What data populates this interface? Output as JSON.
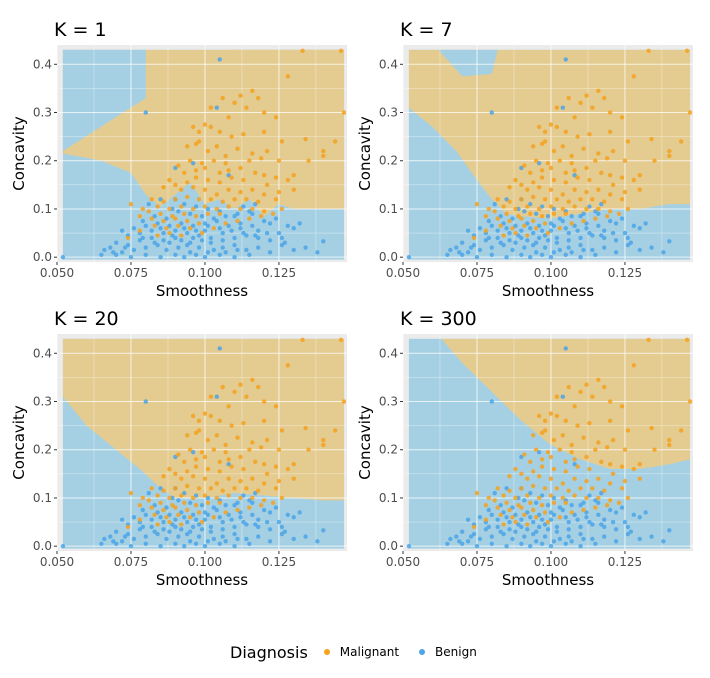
{
  "colors": {
    "malignant": "#F4A11E",
    "benign": "#4BA5E8",
    "region_malignant": "#E4CB90",
    "region_benign": "#A5D0E3",
    "panel_background": "#EBEBEB",
    "grid": "#FFFFFF"
  },
  "legend": {
    "title": "Diagnosis",
    "items": [
      {
        "label": "Malignant",
        "color_key": "malignant"
      },
      {
        "label": "Benign",
        "color_key": "benign"
      }
    ]
  },
  "chart_data": [
    {
      "type": "scatter",
      "title": "K =  1",
      "xlabel": "Smoothness",
      "ylabel": "Concavity",
      "xlim": [
        0.05,
        0.148
      ],
      "ylim": [
        -0.01,
        0.44
      ],
      "xticks": [
        0.05,
        0.075,
        0.1,
        0.125
      ],
      "xtick_labels": [
        "0.050",
        "0.075",
        "0.100",
        "0.125"
      ],
      "yticks": [
        0.0,
        0.1,
        0.2,
        0.3,
        0.4
      ],
      "ytick_labels": [
        "0.0",
        "0.1",
        "0.2",
        "0.3",
        "0.4"
      ],
      "grid": true,
      "background": "decision-region",
      "region_boundary": [
        [
          0.052,
          0.215
        ],
        [
          0.065,
          0.2
        ],
        [
          0.075,
          0.175
        ],
        [
          0.08,
          0.13
        ],
        [
          0.085,
          0.105
        ],
        [
          0.09,
          0.13
        ],
        [
          0.095,
          0.155
        ],
        [
          0.1,
          0.11
        ],
        [
          0.105,
          0.12
        ],
        [
          0.11,
          0.1
        ],
        [
          0.115,
          0.12
        ],
        [
          0.12,
          0.085
        ],
        [
          0.125,
          0.11
        ],
        [
          0.13,
          0.1
        ],
        [
          0.135,
          0.1
        ],
        [
          0.147,
          0.1
        ]
      ],
      "region_malignant_extra": [
        [
          0.08,
          0.33
        ],
        [
          0.095,
          0.36
        ],
        [
          0.1,
          0.41
        ],
        [
          0.11,
          0.41
        ],
        [
          0.11,
          0.43
        ],
        [
          0.147,
          0.43
        ],
        [
          0.147,
          0.2
        ],
        [
          0.12,
          0.2
        ],
        [
          0.1,
          0.25
        ],
        [
          0.09,
          0.28
        ],
        [
          0.082,
          0.3
        ]
      ]
    },
    {
      "type": "scatter",
      "title": "K =  7",
      "xlabel": "Smoothness",
      "ylabel": "Concavity",
      "xlim": [
        0.05,
        0.148
      ],
      "ylim": [
        -0.01,
        0.44
      ],
      "xticks": [
        0.05,
        0.075,
        0.1,
        0.125
      ],
      "xtick_labels": [
        "0.050",
        "0.075",
        "0.100",
        "0.125"
      ],
      "yticks": [
        0.0,
        0.1,
        0.2,
        0.3,
        0.4
      ],
      "ytick_labels": [
        "0.0",
        "0.1",
        "0.2",
        "0.3",
        "0.4"
      ],
      "grid": true,
      "background": "decision-region",
      "region_boundary": [
        [
          0.052,
          0.31
        ],
        [
          0.06,
          0.27
        ],
        [
          0.068,
          0.22
        ],
        [
          0.075,
          0.16
        ],
        [
          0.08,
          0.12
        ],
        [
          0.085,
          0.09
        ],
        [
          0.09,
          0.085
        ],
        [
          0.1,
          0.08
        ],
        [
          0.11,
          0.09
        ],
        [
          0.12,
          0.1
        ],
        [
          0.13,
          0.1
        ],
        [
          0.14,
          0.11
        ],
        [
          0.147,
          0.11
        ]
      ]
    },
    {
      "type": "scatter",
      "title": "K =  20",
      "xlabel": "Smoothness",
      "ylabel": "Concavity",
      "xlim": [
        0.05,
        0.148
      ],
      "ylim": [
        -0.01,
        0.44
      ],
      "xticks": [
        0.05,
        0.075,
        0.1,
        0.125
      ],
      "xtick_labels": [
        "0.050",
        "0.075",
        "0.100",
        "0.125"
      ],
      "yticks": [
        0.0,
        0.1,
        0.2,
        0.3,
        0.4
      ],
      "ytick_labels": [
        "0.0",
        "0.1",
        "0.2",
        "0.3",
        "0.4"
      ],
      "grid": true,
      "background": "decision-region",
      "region_boundary": [
        [
          0.052,
          0.31
        ],
        [
          0.06,
          0.25
        ],
        [
          0.07,
          0.2
        ],
        [
          0.078,
          0.16
        ],
        [
          0.085,
          0.12
        ],
        [
          0.09,
          0.1
        ],
        [
          0.1,
          0.1
        ],
        [
          0.11,
          0.11
        ],
        [
          0.12,
          0.105
        ],
        [
          0.13,
          0.1
        ],
        [
          0.14,
          0.095
        ],
        [
          0.147,
          0.095
        ]
      ]
    },
    {
      "type": "scatter",
      "title": "K =  300",
      "xlabel": "Smoothness",
      "ylabel": "Concavity",
      "xlim": [
        0.05,
        0.148
      ],
      "ylim": [
        -0.01,
        0.44
      ],
      "xticks": [
        0.05,
        0.075,
        0.1,
        0.125
      ],
      "xtick_labels": [
        "0.050",
        "0.075",
        "0.100",
        "0.125"
      ],
      "yticks": [
        0.0,
        0.1,
        0.2,
        0.3,
        0.4
      ],
      "ytick_labels": [
        "0.0",
        "0.1",
        "0.2",
        "0.3",
        "0.4"
      ],
      "grid": true,
      "background": "decision-region",
      "region_boundary": [
        [
          0.063,
          0.43
        ],
        [
          0.07,
          0.38
        ],
        [
          0.08,
          0.32
        ],
        [
          0.09,
          0.26
        ],
        [
          0.1,
          0.21
        ],
        [
          0.11,
          0.18
        ],
        [
          0.12,
          0.16
        ],
        [
          0.13,
          0.16
        ],
        [
          0.14,
          0.17
        ],
        [
          0.147,
          0.18
        ]
      ]
    }
  ],
  "points": {
    "malignant": [
      [
        0.133,
        0.428
      ],
      [
        0.146,
        0.428
      ],
      [
        0.128,
        0.375
      ],
      [
        0.116,
        0.345
      ],
      [
        0.112,
        0.335
      ],
      [
        0.118,
        0.33
      ],
      [
        0.11,
        0.32
      ],
      [
        0.114,
        0.31
      ],
      [
        0.124,
        0.29
      ],
      [
        0.12,
        0.3
      ],
      [
        0.108,
        0.29
      ],
      [
        0.1,
        0.275
      ],
      [
        0.102,
        0.27
      ],
      [
        0.098,
        0.26
      ],
      [
        0.105,
        0.26
      ],
      [
        0.109,
        0.25
      ],
      [
        0.113,
        0.255
      ],
      [
        0.12,
        0.26
      ],
      [
        0.126,
        0.24
      ],
      [
        0.134,
        0.245
      ],
      [
        0.144,
        0.24
      ],
      [
        0.14,
        0.21
      ],
      [
        0.094,
        0.23
      ],
      [
        0.097,
        0.235
      ],
      [
        0.101,
        0.22
      ],
      [
        0.104,
        0.23
      ],
      [
        0.107,
        0.21
      ],
      [
        0.111,
        0.225
      ],
      [
        0.116,
        0.215
      ],
      [
        0.121,
        0.22
      ],
      [
        0.125,
        0.2
      ],
      [
        0.115,
        0.2
      ],
      [
        0.107,
        0.195
      ],
      [
        0.103,
        0.2
      ],
      [
        0.099,
        0.195
      ],
      [
        0.095,
        0.2
      ],
      [
        0.091,
        0.19
      ],
      [
        0.093,
        0.175
      ],
      [
        0.097,
        0.18
      ],
      [
        0.1,
        0.185
      ],
      [
        0.105,
        0.175
      ],
      [
        0.108,
        0.18
      ],
      [
        0.112,
        0.185
      ],
      [
        0.117,
        0.175
      ],
      [
        0.12,
        0.17
      ],
      [
        0.124,
        0.165
      ],
      [
        0.128,
        0.16
      ],
      [
        0.113,
        0.16
      ],
      [
        0.109,
        0.165
      ],
      [
        0.105,
        0.155
      ],
      [
        0.101,
        0.16
      ],
      [
        0.097,
        0.165
      ],
      [
        0.094,
        0.155
      ],
      [
        0.09,
        0.15
      ],
      [
        0.086,
        0.145
      ],
      [
        0.088,
        0.16
      ],
      [
        0.092,
        0.14
      ],
      [
        0.096,
        0.145
      ],
      [
        0.1,
        0.14
      ],
      [
        0.104,
        0.13
      ],
      [
        0.108,
        0.14
      ],
      [
        0.112,
        0.135
      ],
      [
        0.116,
        0.14
      ],
      [
        0.12,
        0.13
      ],
      [
        0.124,
        0.12
      ],
      [
        0.118,
        0.115
      ],
      [
        0.114,
        0.12
      ],
      [
        0.11,
        0.12
      ],
      [
        0.106,
        0.115
      ],
      [
        0.102,
        0.12
      ],
      [
        0.098,
        0.12
      ],
      [
        0.094,
        0.125
      ],
      [
        0.09,
        0.12
      ],
      [
        0.086,
        0.115
      ],
      [
        0.082,
        0.12
      ],
      [
        0.084,
        0.105
      ],
      [
        0.088,
        0.1
      ],
      [
        0.092,
        0.105
      ],
      [
        0.096,
        0.1
      ],
      [
        0.1,
        0.105
      ],
      [
        0.104,
        0.1
      ],
      [
        0.108,
        0.105
      ],
      [
        0.112,
        0.1
      ],
      [
        0.116,
        0.1
      ],
      [
        0.12,
        0.095
      ],
      [
        0.126,
        0.1
      ],
      [
        0.081,
        0.095
      ],
      [
        0.085,
        0.09
      ],
      [
        0.089,
        0.085
      ],
      [
        0.093,
        0.09
      ],
      [
        0.097,
        0.085
      ],
      [
        0.101,
        0.09
      ],
      [
        0.105,
        0.09
      ],
      [
        0.078,
        0.085
      ],
      [
        0.082,
        0.08
      ],
      [
        0.086,
        0.075
      ],
      [
        0.09,
        0.08
      ],
      [
        0.094,
        0.075
      ],
      [
        0.098,
        0.07
      ],
      [
        0.075,
        0.11
      ],
      [
        0.079,
        0.1
      ],
      [
        0.083,
        0.065
      ],
      [
        0.087,
        0.06
      ],
      [
        0.091,
        0.065
      ],
      [
        0.095,
        0.06
      ],
      [
        0.088,
        0.05
      ],
      [
        0.084,
        0.045
      ],
      [
        0.092,
        0.045
      ],
      [
        0.099,
        0.05
      ],
      [
        0.078,
        0.055
      ],
      [
        0.074,
        0.04
      ],
      [
        0.103,
        0.06
      ],
      [
        0.107,
        0.07
      ],
      [
        0.111,
        0.075
      ],
      [
        0.115,
        0.08
      ],
      [
        0.119,
        0.085
      ],
      [
        0.123,
        0.09
      ],
      [
        0.13,
        0.17
      ],
      [
        0.135,
        0.2
      ],
      [
        0.14,
        0.22
      ],
      [
        0.147,
        0.3
      ],
      [
        0.102,
        0.31
      ],
      [
        0.106,
        0.33
      ],
      [
        0.098,
        0.24
      ],
      [
        0.096,
        0.27
      ],
      [
        0.119,
        0.205
      ],
      [
        0.121,
        0.15
      ],
      [
        0.125,
        0.135
      ],
      [
        0.13,
        0.14
      ]
    ],
    "benign": [
      [
        0.105,
        0.41
      ],
      [
        0.104,
        0.31
      ],
      [
        0.08,
        0.3
      ],
      [
        0.052,
        0.0
      ],
      [
        0.14,
        0.033
      ],
      [
        0.096,
        0.195
      ],
      [
        0.09,
        0.185
      ],
      [
        0.108,
        0.17
      ],
      [
        0.09,
        0.12
      ],
      [
        0.11,
        0.085
      ],
      [
        0.116,
        0.09
      ],
      [
        0.122,
        0.07
      ],
      [
        0.125,
        0.05
      ],
      [
        0.13,
        0.06
      ],
      [
        0.118,
        0.055
      ],
      [
        0.112,
        0.06
      ],
      [
        0.106,
        0.05
      ],
      [
        0.1,
        0.055
      ],
      [
        0.096,
        0.04
      ],
      [
        0.092,
        0.035
      ],
      [
        0.088,
        0.03
      ],
      [
        0.084,
        0.025
      ],
      [
        0.08,
        0.02
      ],
      [
        0.076,
        0.015
      ],
      [
        0.072,
        0.01
      ],
      [
        0.068,
        0.02
      ],
      [
        0.065,
        0.005
      ],
      [
        0.07,
        0.03
      ],
      [
        0.074,
        0.025
      ],
      [
        0.078,
        0.035
      ],
      [
        0.082,
        0.04
      ],
      [
        0.086,
        0.035
      ],
      [
        0.09,
        0.04
      ],
      [
        0.094,
        0.025
      ],
      [
        0.098,
        0.02
      ],
      [
        0.102,
        0.03
      ],
      [
        0.106,
        0.02
      ],
      [
        0.11,
        0.025
      ],
      [
        0.114,
        0.015
      ],
      [
        0.118,
        0.02
      ],
      [
        0.122,
        0.01
      ],
      [
        0.126,
        0.025
      ],
      [
        0.13,
        0.015
      ],
      [
        0.134,
        0.02
      ],
      [
        0.138,
        0.01
      ],
      [
        0.085,
        0.0
      ],
      [
        0.09,
        0.005
      ],
      [
        0.095,
        0.01
      ],
      [
        0.1,
        0.0
      ],
      [
        0.105,
        0.005
      ],
      [
        0.11,
        0.0
      ],
      [
        0.115,
        0.005
      ],
      [
        0.08,
        0.005
      ],
      [
        0.075,
        0.0
      ],
      [
        0.07,
        0.005
      ],
      [
        0.066,
        0.015
      ],
      [
        0.074,
        0.045
      ],
      [
        0.078,
        0.05
      ],
      [
        0.082,
        0.055
      ],
      [
        0.086,
        0.05
      ],
      [
        0.09,
        0.055
      ],
      [
        0.094,
        0.05
      ],
      [
        0.098,
        0.045
      ],
      [
        0.102,
        0.04
      ],
      [
        0.106,
        0.035
      ],
      [
        0.11,
        0.04
      ],
      [
        0.114,
        0.045
      ],
      [
        0.118,
        0.04
      ],
      [
        0.122,
        0.035
      ],
      [
        0.126,
        0.04
      ],
      [
        0.08,
        0.065
      ],
      [
        0.084,
        0.07
      ],
      [
        0.088,
        0.065
      ],
      [
        0.092,
        0.07
      ],
      [
        0.096,
        0.065
      ],
      [
        0.1,
        0.07
      ],
      [
        0.104,
        0.075
      ],
      [
        0.108,
        0.065
      ],
      [
        0.112,
        0.07
      ],
      [
        0.116,
        0.065
      ],
      [
        0.076,
        0.06
      ],
      [
        0.072,
        0.055
      ],
      [
        0.079,
        0.075
      ],
      [
        0.083,
        0.085
      ],
      [
        0.087,
        0.08
      ],
      [
        0.091,
        0.095
      ],
      [
        0.095,
        0.09
      ],
      [
        0.099,
        0.085
      ],
      [
        0.103,
        0.08
      ],
      [
        0.107,
        0.085
      ],
      [
        0.111,
        0.09
      ],
      [
        0.115,
        0.095
      ],
      [
        0.117,
        0.11
      ],
      [
        0.113,
        0.105
      ],
      [
        0.081,
        0.11
      ],
      [
        0.085,
        0.12
      ],
      [
        0.089,
        0.1
      ],
      [
        0.093,
        0.11
      ],
      [
        0.097,
        0.105
      ],
      [
        0.101,
        0.1
      ],
      [
        0.105,
        0.095
      ],
      [
        0.128,
        0.065
      ],
      [
        0.132,
        0.07
      ],
      [
        0.124,
        0.08
      ],
      [
        0.12,
        0.075
      ],
      [
        0.087,
        0.015
      ],
      [
        0.091,
        0.02
      ],
      [
        0.095,
        0.03
      ],
      [
        0.099,
        0.035
      ],
      [
        0.103,
        0.015
      ],
      [
        0.107,
        0.01
      ],
      [
        0.111,
        0.015
      ],
      [
        0.083,
        0.03
      ],
      [
        0.079,
        0.04
      ],
      [
        0.073,
        0.02
      ],
      [
        0.069,
        0.01
      ],
      [
        0.093,
        0.0
      ],
      [
        0.097,
        0.005
      ],
      [
        0.101,
        0.01
      ],
      [
        0.089,
        0.045
      ],
      [
        0.085,
        0.06
      ],
      [
        0.093,
        0.06
      ],
      [
        0.097,
        0.055
      ],
      [
        0.101,
        0.065
      ],
      [
        0.105,
        0.06
      ],
      [
        0.109,
        0.055
      ],
      [
        0.113,
        0.05
      ],
      [
        0.117,
        0.045
      ],
      [
        0.121,
        0.05
      ],
      [
        0.127,
        0.03
      ]
    ]
  }
}
